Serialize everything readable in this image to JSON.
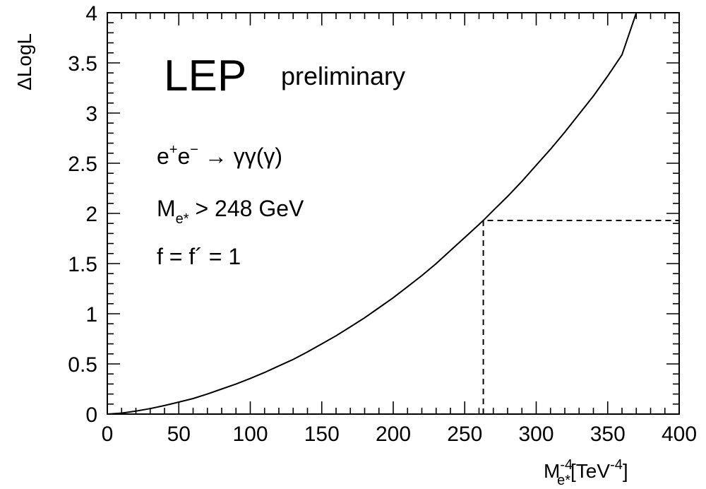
{
  "chart_data": {
    "type": "line",
    "title": "",
    "xlabel": "M",
    "xlabel_sub": "e*",
    "xlabel_sup": "-4",
    "xlabel_unit": "[TeV",
    "xlabel_unit_sup": "-4",
    "xlabel_unit_close": "]",
    "ylabel": "ΔLogL",
    "xlim": [
      0,
      400
    ],
    "ylim": [
      0,
      4
    ],
    "x_ticks": [
      "0",
      "50",
      "100",
      "150",
      "200",
      "250",
      "300",
      "350",
      "400"
    ],
    "y_ticks": [
      "0",
      "0.5",
      "1",
      "1.5",
      "2",
      "2.5",
      "3",
      "3.5",
      "4"
    ],
    "x_tick_values": [
      0,
      50,
      100,
      150,
      200,
      250,
      300,
      350,
      400
    ],
    "y_tick_values": [
      0,
      0.5,
      1,
      1.5,
      2,
      2.5,
      3,
      3.5,
      4
    ],
    "grid": false,
    "series": [
      {
        "x": [
          0,
          10,
          20,
          30,
          40,
          50,
          60,
          70,
          80,
          90,
          100,
          110,
          120,
          130,
          140,
          150,
          160,
          170,
          180,
          190,
          200,
          210,
          220,
          230,
          240,
          250,
          260,
          263,
          270,
          280,
          290,
          300,
          310,
          320,
          330,
          340,
          350,
          360,
          370
        ],
        "y": [
          0,
          0.01,
          0.03,
          0.055,
          0.085,
          0.12,
          0.155,
          0.2,
          0.25,
          0.3,
          0.355,
          0.415,
          0.48,
          0.545,
          0.62,
          0.7,
          0.78,
          0.87,
          0.96,
          1.06,
          1.16,
          1.27,
          1.38,
          1.5,
          1.63,
          1.76,
          1.89,
          1.93,
          2.03,
          2.17,
          2.32,
          2.48,
          2.64,
          2.81,
          2.99,
          3.17,
          3.37,
          3.58,
          4.0
        ]
      }
    ],
    "limit_line": {
      "x": 263,
      "y": 1.93,
      "x_end": 400
    }
  },
  "annotations": {
    "lep": "LEP",
    "preliminary": "preliminary",
    "process_e1": "e",
    "process_plus": "+",
    "process_e2": "e",
    "process_minus": "−",
    "process_arrow": " → γγ(γ)",
    "mass_m": "M",
    "mass_sub": "e*",
    "mass_rest": " > 248 GeV",
    "coupling": "f = f´ = 1"
  }
}
